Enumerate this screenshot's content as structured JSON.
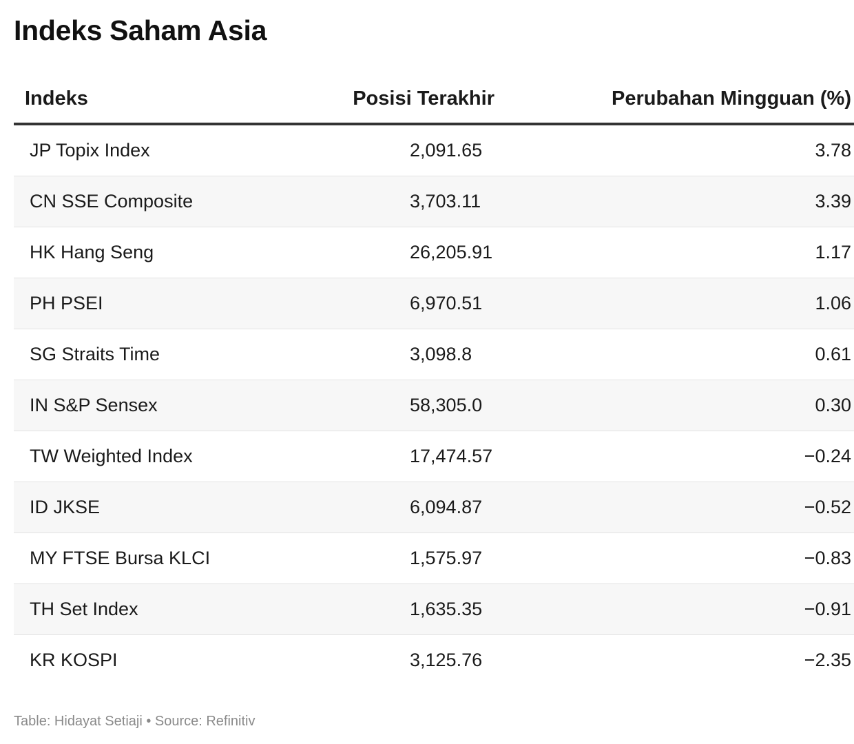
{
  "title": "Indeks Saham Asia",
  "chart_data": {
    "type": "table",
    "title": "Indeks Saham Asia",
    "columns": [
      "Indeks",
      "Posisi Terakhir",
      "Perubahan Mingguan (%)"
    ],
    "rows": [
      {
        "indeks": "JP Topix Index",
        "posisi": "2,091.65",
        "perubahan": "3.78"
      },
      {
        "indeks": "CN SSE Composite",
        "posisi": "3,703.11",
        "perubahan": "3.39"
      },
      {
        "indeks": "HK Hang Seng",
        "posisi": "26,205.91",
        "perubahan": "1.17"
      },
      {
        "indeks": "PH PSEI",
        "posisi": "6,970.51",
        "perubahan": "1.06"
      },
      {
        "indeks": "SG Straits Time",
        "posisi": "3,098.8",
        "perubahan": "0.61"
      },
      {
        "indeks": "IN S&P Sensex",
        "posisi": "58,305.0",
        "perubahan": "0.30"
      },
      {
        "indeks": "TW Weighted Index",
        "posisi": "17,474.57",
        "perubahan": "−0.24"
      },
      {
        "indeks": "ID JKSE",
        "posisi": "6,094.87",
        "perubahan": "−0.52"
      },
      {
        "indeks": "MY FTSE Bursa KLCI",
        "posisi": "1,575.97",
        "perubahan": "−0.83"
      },
      {
        "indeks": "TH Set Index",
        "posisi": "1,635.35",
        "perubahan": "−0.91"
      },
      {
        "indeks": "KR KOSPI",
        "posisi": "3,125.76",
        "perubahan": "−2.35"
      }
    ]
  },
  "footer": "Table: Hidayat Setiaji • Source: Refinitiv"
}
